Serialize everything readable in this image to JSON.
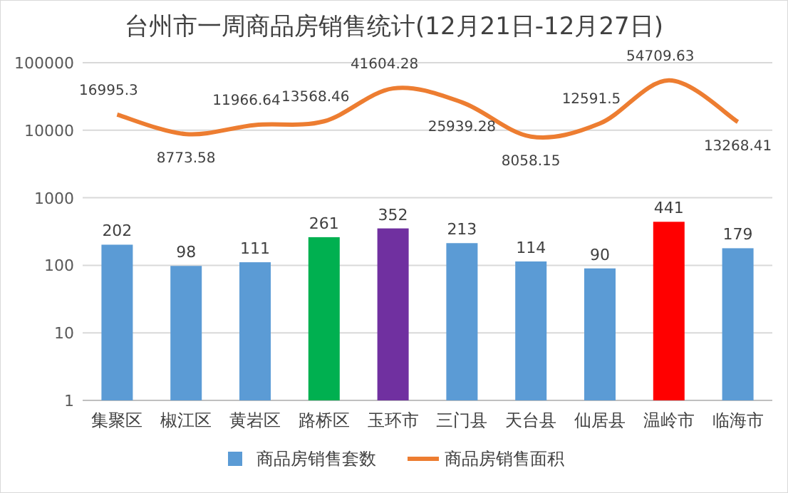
{
  "chart_data": {
    "type": "bar",
    "title": "台州市一周商品房销售统计(12月21日-12月27日)",
    "categories": [
      "集聚区",
      "椒江区",
      "黄岩区",
      "路桥区",
      "玉环市",
      "三门县",
      "天台县",
      "仙居县",
      "温岭市",
      "临海市"
    ],
    "series": [
      {
        "name": "商品房销售套数",
        "color": "#5b9bd5",
        "colors": [
          "#5b9bd5",
          "#5b9bd5",
          "#5b9bd5",
          "#00b050",
          "#7030a0",
          "#5b9bd5",
          "#5b9bd5",
          "#5b9bd5",
          "#ff0000",
          "#5b9bd5"
        ],
        "values": [
          202,
          98,
          111,
          261,
          352,
          213,
          114,
          90,
          441,
          179
        ]
      },
      {
        "name": "商品房销售面积",
        "type": "line",
        "color": "#ed7d31",
        "values": [
          16995.3,
          8773.58,
          11966.64,
          13568.46,
          41604.28,
          25939.28,
          8058.15,
          12591.5,
          54709.63,
          13268.41
        ]
      }
    ],
    "log": true,
    "ylim": [
      1,
      100000
    ],
    "yticks": [
      1,
      10,
      100,
      1000,
      10000,
      100000
    ],
    "grid": "y",
    "data_labels": true,
    "legend": "bottom",
    "marker": "none",
    "line_style": "solid"
  }
}
